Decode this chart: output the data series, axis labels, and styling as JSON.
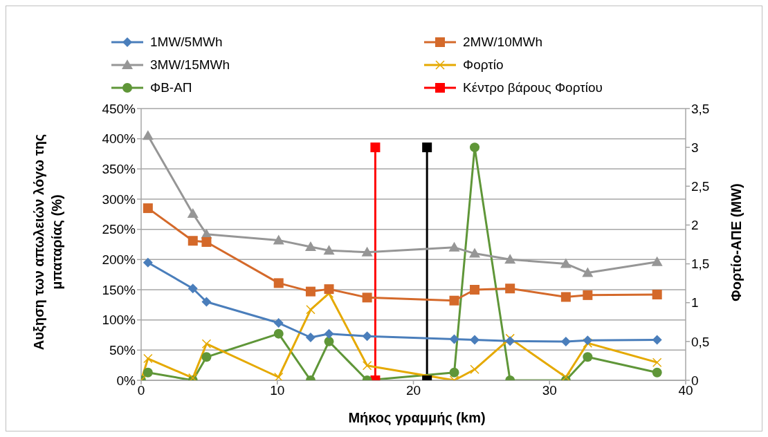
{
  "chart_data": {
    "type": "line",
    "xlabel": "Μήκος γραμμής (km)",
    "ylabel": "Αυξηση των απωλειών λόγω της μπαταρίας (%)",
    "y2label": "Φορτίο-ΑΠΕ (MW)",
    "x": [
      0.5,
      3.8,
      4.8,
      10.1,
      12.45,
      13.8,
      16.6,
      23,
      24.5,
      27.1,
      31.2,
      32.8,
      37.9
    ],
    "series": [
      {
        "name": "1MW/5MWh",
        "color": "#4a7ebb",
        "marker": "diamond",
        "values": [
          195,
          152,
          130,
          95,
          71,
          77,
          73,
          68,
          67,
          65,
          64,
          66,
          67
        ]
      },
      {
        "name": "2MW/10MWh",
        "color": "#d4692a",
        "marker": "square",
        "values": [
          285,
          231,
          229,
          161,
          147,
          151,
          137,
          132,
          150,
          152,
          138,
          141,
          142
        ]
      },
      {
        "name": "3MW/15MWh",
        "color": "#969696",
        "marker": "triangle",
        "values": [
          405,
          276,
          242,
          232,
          221,
          215,
          212,
          220,
          210,
          200,
          193,
          178,
          196
        ]
      },
      {
        "name": "Φορτίο",
        "color": "#e5a900",
        "marker": "cross",
        "axis": "y2",
        "x": [
          0,
          0.5,
          3.8,
          4.8,
          10.1,
          12.45,
          13.8,
          16.6,
          23,
          24.5,
          27.1,
          31.2,
          32.8,
          37.9
        ],
        "values": [
          0,
          0.28,
          0.03,
          0.47,
          0.04,
          0.91,
          1.12,
          0.19,
          0,
          0.14,
          0.54,
          0.04,
          0.48,
          0.23
        ]
      },
      {
        "name": "ΦΒ-ΑΠ",
        "color": "#5f9638",
        "marker": "circle",
        "axis": "y2",
        "x": [
          0,
          0.5,
          3.8,
          4.8,
          10.1,
          12.45,
          13.8,
          16.6,
          23,
          24.5,
          27.1,
          31.2,
          32.8,
          37.9
        ],
        "values": [
          0,
          0.1,
          0,
          0.3,
          0.6,
          0,
          0.5,
          0,
          0.1,
          3,
          0,
          0,
          0.3,
          0.1
        ]
      },
      {
        "name": "Κέντρο βάρους Φορτίου",
        "color": "#ff0000",
        "marker": "square",
        "axis": "y2",
        "x": [
          17.2,
          17.2
        ],
        "values": [
          0,
          3
        ]
      },
      {
        "color": "#000000",
        "marker": "square",
        "axis": "y2",
        "x": [
          21,
          21
        ],
        "values": [
          0,
          3
        ]
      }
    ],
    "xlim": [
      0,
      40
    ],
    "xticks": [
      0,
      10,
      20,
      30,
      40
    ],
    "ylim": [
      0,
      450
    ],
    "yticks": [
      {
        "value": 0,
        "label": "0%"
      },
      {
        "value": 50,
        "label": "50%"
      },
      {
        "value": 100,
        "label": "100%"
      },
      {
        "value": 150,
        "label": "150%"
      },
      {
        "value": 200,
        "label": "200%"
      },
      {
        "value": 250,
        "label": "250%"
      },
      {
        "value": 300,
        "label": "300%"
      },
      {
        "value": 350,
        "label": "350%"
      },
      {
        "value": 400,
        "label": "400%"
      },
      {
        "value": 450,
        "label": "450%"
      }
    ],
    "y2lim": [
      0,
      3.5
    ],
    "y2ticks": [
      0,
      {
        "value": 0.5,
        "label": "0,5"
      },
      1,
      {
        "value": 1.5,
        "label": "1,5"
      },
      2,
      {
        "value": 2.5,
        "label": "2,5"
      },
      3,
      {
        "value": 3.5,
        "label": "3,5"
      }
    ],
    "grid": "y",
    "legend": "top"
  }
}
